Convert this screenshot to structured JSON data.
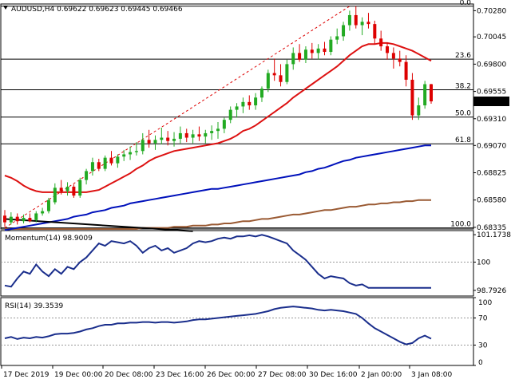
{
  "header": {
    "main": "AUDUSD,H4  0.69622 0.69623 0.69445 0.69466",
    "momentum": "Momentum(14) 98.9009",
    "rsi": "RSI(14) 39.3539"
  },
  "colors": {
    "bull": "#22aa22",
    "bear": "#dd0000",
    "ma_red": "#dd1111",
    "ma_blue": "#0011bb",
    "ma_brown": "#9a5a33",
    "trend_black": "#000000",
    "fib_line": "#000000",
    "fib_diagonal": "#dd0000",
    "indicator_line": "#1a2e8c",
    "price_tag_bg": "#000000"
  },
  "chart_data": [
    {
      "type": "candlestick",
      "symbol": "AUDUSD",
      "timeframe": "H4",
      "ohlc_current": {
        "open": 0.69622,
        "high": 0.69623,
        "low": 0.69445,
        "close": 0.69466
      },
      "ylim": [
        0.6832,
        0.7034
      ],
      "y_ticks": [
        "0.70280",
        "0.70045",
        "0.69800",
        "0.69555",
        "0.69310",
        "0.69070",
        "0.68825",
        "0.68580",
        "0.68335"
      ],
      "y_tick_values": [
        0.7028,
        0.70045,
        0.698,
        0.69555,
        0.6931,
        0.6907,
        0.68825,
        0.6858,
        0.68335
      ],
      "current_price_label": "0.69466",
      "x_labels": [
        "17 Dec 2019",
        "19 Dec 00:00",
        "20 Dec 08:00",
        "23 Dec 16:00",
        "26 Dec 00:00",
        "27 Dec 08:00",
        "30 Dec 16:00",
        "2 Jan 00:00",
        "3 Jan 08:00"
      ],
      "fibonacci": {
        "levels": [
          {
            "label": "0.0",
            "price": 0.7032
          },
          {
            "label": "23.6",
            "price": 0.69845
          },
          {
            "label": "38.2",
            "price": 0.6957
          },
          {
            "label": "50.0",
            "price": 0.69325
          },
          {
            "label": "61.8",
            "price": 0.69085
          },
          {
            "label": "100.0",
            "price": 0.6833
          }
        ]
      },
      "candles": [
        [
          0.6844,
          0.6849,
          0.6834,
          0.6838
        ],
        [
          0.6838,
          0.6847,
          0.6836,
          0.6843
        ],
        [
          0.6843,
          0.6846,
          0.6836,
          0.6839
        ],
        [
          0.6839,
          0.6845,
          0.6837,
          0.6842
        ],
        [
          0.6842,
          0.6846,
          0.6838,
          0.6839
        ],
        [
          0.684,
          0.6848,
          0.6838,
          0.6846
        ],
        [
          0.6846,
          0.6851,
          0.6844,
          0.6848
        ],
        [
          0.6848,
          0.686,
          0.6846,
          0.6858
        ],
        [
          0.6856,
          0.6873,
          0.6854,
          0.6869
        ],
        [
          0.6869,
          0.6876,
          0.6863,
          0.6866
        ],
        [
          0.6866,
          0.6874,
          0.6862,
          0.687
        ],
        [
          0.687,
          0.6872,
          0.686,
          0.6862
        ],
        [
          0.6862,
          0.6878,
          0.686,
          0.6876
        ],
        [
          0.6876,
          0.6886,
          0.6872,
          0.6884
        ],
        [
          0.6884,
          0.6896,
          0.688,
          0.6892
        ],
        [
          0.6892,
          0.6895,
          0.6884,
          0.6886
        ],
        [
          0.6886,
          0.6898,
          0.6884,
          0.6896
        ],
        [
          0.6896,
          0.6902,
          0.6889,
          0.6891
        ],
        [
          0.6891,
          0.6899,
          0.6887,
          0.6897
        ],
        [
          0.6897,
          0.6903,
          0.6893,
          0.6899
        ],
        [
          0.6899,
          0.6906,
          0.6894,
          0.6901
        ],
        [
          0.6901,
          0.691,
          0.6898,
          0.6902
        ],
        [
          0.6902,
          0.6918,
          0.6899,
          0.6912
        ],
        [
          0.6912,
          0.6921,
          0.6905,
          0.6909
        ],
        [
          0.6909,
          0.6916,
          0.6903,
          0.6912
        ],
        [
          0.6912,
          0.6923,
          0.6908,
          0.6914
        ],
        [
          0.6914,
          0.692,
          0.6907,
          0.6911
        ],
        [
          0.6911,
          0.6919,
          0.6906,
          0.6913
        ],
        [
          0.6913,
          0.6924,
          0.6909,
          0.6918
        ],
        [
          0.6918,
          0.6922,
          0.691,
          0.6914
        ],
        [
          0.6914,
          0.6921,
          0.6909,
          0.6917
        ],
        [
          0.6917,
          0.6924,
          0.6911,
          0.6915
        ],
        [
          0.6915,
          0.6921,
          0.6909,
          0.6918
        ],
        [
          0.6918,
          0.6925,
          0.6912,
          0.692
        ],
        [
          0.692,
          0.6928,
          0.6913,
          0.6922
        ],
        [
          0.6922,
          0.6932,
          0.6918,
          0.693
        ],
        [
          0.693,
          0.6942,
          0.6927,
          0.6939
        ],
        [
          0.6939,
          0.6945,
          0.6932,
          0.6942
        ],
        [
          0.6942,
          0.695,
          0.6936,
          0.6946
        ],
        [
          0.6946,
          0.6952,
          0.6939,
          0.6943
        ],
        [
          0.6943,
          0.6954,
          0.6939,
          0.695
        ],
        [
          0.695,
          0.696,
          0.6946,
          0.6958
        ],
        [
          0.6958,
          0.6975,
          0.6955,
          0.6972
        ],
        [
          0.6972,
          0.6985,
          0.6965,
          0.697
        ],
        [
          0.697,
          0.698,
          0.696,
          0.6964
        ],
        [
          0.6964,
          0.6984,
          0.6962,
          0.698
        ],
        [
          0.698,
          0.6995,
          0.6975,
          0.699
        ],
        [
          0.699,
          0.6998,
          0.6982,
          0.6984
        ],
        [
          0.6984,
          0.6996,
          0.6981,
          0.6993
        ],
        [
          0.6993,
          0.6999,
          0.6985,
          0.699
        ],
        [
          0.699,
          0.6998,
          0.6984,
          0.6994
        ],
        [
          0.6994,
          0.7,
          0.6988,
          0.6991
        ],
        [
          0.6991,
          0.7005,
          0.6988,
          0.7002
        ],
        [
          0.7002,
          0.7012,
          0.6998,
          0.7005
        ],
        [
          0.7005,
          0.7018,
          0.7001,
          0.7015
        ],
        [
          0.7015,
          0.7028,
          0.701,
          0.7024
        ],
        [
          0.7024,
          0.7032,
          0.7012,
          0.7015
        ],
        [
          0.7015,
          0.7022,
          0.7006,
          0.7018
        ],
        [
          0.7018,
          0.7026,
          0.7012,
          0.7016
        ],
        [
          0.7016,
          0.7019,
          0.6998,
          0.7003
        ],
        [
          0.7003,
          0.701,
          0.6992,
          0.6996
        ],
        [
          0.6996,
          0.6999,
          0.6984,
          0.699
        ],
        [
          0.699,
          0.6995,
          0.6976,
          0.6985
        ],
        [
          0.6985,
          0.6992,
          0.6978,
          0.6982
        ],
        [
          0.6982,
          0.6988,
          0.696,
          0.6966
        ],
        [
          0.6966,
          0.6972,
          0.693,
          0.6934
        ],
        [
          0.6934,
          0.695,
          0.693,
          0.6943
        ],
        [
          0.6943,
          0.6965,
          0.694,
          0.6962
        ],
        [
          0.6962,
          0.69623,
          0.69445,
          0.69466
        ]
      ],
      "ma_red": [
        0.688,
        0.6878,
        0.6875,
        0.6871,
        0.6868,
        0.6866,
        0.6865,
        0.6865,
        0.6865,
        0.6865,
        0.6865,
        0.6865,
        0.6865,
        0.6865,
        0.6866,
        0.6867,
        0.687,
        0.6873,
        0.6876,
        0.6879,
        0.6882,
        0.6886,
        0.6889,
        0.6893,
        0.6896,
        0.6898,
        0.69,
        0.6902,
        0.6903,
        0.6904,
        0.6905,
        0.6906,
        0.6907,
        0.6908,
        0.6909,
        0.6911,
        0.6913,
        0.6916,
        0.692,
        0.6922,
        0.6925,
        0.6929,
        0.6933,
        0.6937,
        0.6941,
        0.6945,
        0.695,
        0.6954,
        0.6958,
        0.6962,
        0.6966,
        0.697,
        0.6974,
        0.6978,
        0.6983,
        0.6988,
        0.6992,
        0.6996,
        0.6998,
        0.6998,
        0.6999,
        0.6999,
        0.6998,
        0.6996,
        0.6994,
        0.6992,
        0.6989,
        0.6986,
        0.6983
      ],
      "ma_blue": [
        0.6831,
        0.6832,
        0.6833,
        0.6834,
        0.6835,
        0.6836,
        0.6837,
        0.6838,
        0.6839,
        0.684,
        0.6841,
        0.6843,
        0.6844,
        0.6845,
        0.6847,
        0.6848,
        0.6849,
        0.6851,
        0.6852,
        0.6853,
        0.6855,
        0.6856,
        0.6857,
        0.6858,
        0.6859,
        0.686,
        0.6861,
        0.6862,
        0.6863,
        0.6864,
        0.6865,
        0.6866,
        0.6867,
        0.6868,
        0.6868,
        0.6869,
        0.687,
        0.6871,
        0.6872,
        0.6873,
        0.6874,
        0.6875,
        0.6876,
        0.6877,
        0.6878,
        0.6879,
        0.688,
        0.6881,
        0.6883,
        0.6884,
        0.6886,
        0.6887,
        0.6889,
        0.6891,
        0.6893,
        0.6894,
        0.6896,
        0.6897,
        0.6898,
        0.6899,
        0.69,
        0.6901,
        0.6902,
        0.6903,
        0.6904,
        0.6905,
        0.6906,
        0.6907,
        0.6907
      ],
      "ma_brown": [
        0.6832,
        0.6832,
        0.6832,
        0.6832,
        0.6832,
        0.6832,
        0.6832,
        0.6832,
        0.6832,
        0.6832,
        0.6832,
        0.6832,
        0.6832,
        0.6832,
        0.6832,
        0.6832,
        0.6832,
        0.6832,
        0.6832,
        0.6832,
        0.6832,
        0.6832,
        0.6833,
        0.6833,
        0.6833,
        0.6833,
        0.6833,
        0.6834,
        0.6834,
        0.6834,
        0.6835,
        0.6835,
        0.6835,
        0.6836,
        0.6836,
        0.6837,
        0.6837,
        0.6838,
        0.6839,
        0.6839,
        0.684,
        0.6841,
        0.6841,
        0.6842,
        0.6843,
        0.6844,
        0.6845,
        0.6845,
        0.6846,
        0.6847,
        0.6848,
        0.6849,
        0.6849,
        0.685,
        0.6851,
        0.6852,
        0.6852,
        0.6853,
        0.6854,
        0.6854,
        0.6855,
        0.6855,
        0.6856,
        0.6856,
        0.6857,
        0.6857,
        0.6858,
        0.6858,
        0.6858
      ],
      "trend_black": {
        "start_price": 0.6841,
        "end_price": 0.683,
        "start_index": 0,
        "end_index": 30
      }
    },
    {
      "type": "line",
      "name": "Momentum(14)",
      "ylim": [
        98.55,
        101.35
      ],
      "y_ticks": [
        "101.1738",
        "100",
        "98.7926"
      ],
      "y_tick_values": [
        101.1738,
        100,
        98.7926
      ],
      "reference_level": 100,
      "values": [
        99.0,
        98.95,
        99.3,
        99.6,
        99.5,
        99.9,
        99.6,
        99.4,
        99.7,
        99.5,
        99.8,
        99.7,
        100.0,
        100.2,
        100.5,
        100.8,
        100.7,
        100.9,
        100.85,
        100.8,
        100.9,
        100.7,
        100.4,
        100.6,
        100.7,
        100.5,
        100.6,
        100.4,
        100.5,
        100.6,
        100.8,
        100.9,
        100.85,
        100.9,
        101.0,
        101.05,
        101.0,
        101.1,
        101.1,
        101.15,
        101.1,
        101.17,
        101.1,
        101.0,
        100.9,
        100.8,
        100.5,
        100.3,
        100.1,
        99.8,
        99.5,
        99.3,
        99.4,
        99.35,
        99.3,
        99.1,
        99.0,
        99.05,
        98.9,
        98.9,
        98.9,
        98.9,
        98.9,
        98.9,
        98.9,
        98.9,
        98.9,
        98.9,
        98.9
      ]
    },
    {
      "type": "line",
      "name": "RSI(14)",
      "ylim": [
        0,
        100
      ],
      "y_ticks": [
        "100",
        "70",
        "30",
        "0"
      ],
      "y_tick_values": [
        100,
        70,
        30,
        0
      ],
      "levels": [
        70,
        30
      ],
      "values": [
        40,
        42,
        39,
        41,
        40,
        42,
        41,
        43,
        46,
        47,
        47,
        48,
        50,
        53,
        55,
        58,
        60,
        60,
        62,
        62,
        63,
        63,
        64,
        64,
        63,
        64,
        64,
        63,
        64,
        65,
        67,
        68,
        68,
        69,
        70,
        71,
        72,
        73,
        74,
        75,
        76,
        78,
        80,
        83,
        85,
        86,
        87,
        86,
        85,
        84,
        82,
        81,
        82,
        81,
        80,
        78,
        76,
        70,
        62,
        55,
        50,
        45,
        40,
        35,
        31,
        33,
        40,
        44,
        39.3539
      ]
    }
  ]
}
